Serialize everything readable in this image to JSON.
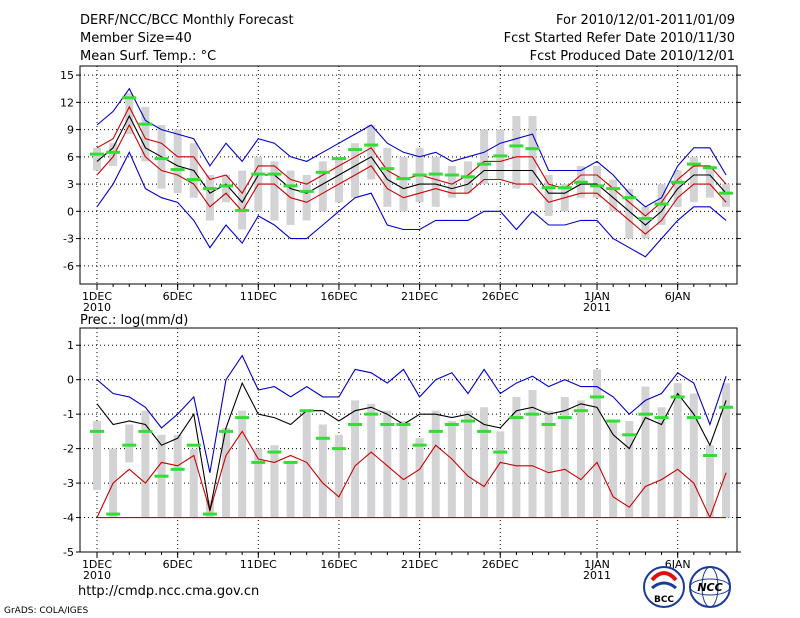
{
  "header": {
    "title": "DERF/NCC/BCC Monthly Forecast",
    "member_size": "Member Size=40",
    "variable": "Mean Surf. Temp.: °C",
    "period": "For 2010/12/01-2011/01/09",
    "started": "Fcst Started Refer Date 2010/11/30",
    "produced": "Fcst Produced Date 2010/12/01"
  },
  "footer": {
    "url": "http://cmdp.ncc.cma.gov.cn",
    "grads": "GrADS: COLA/IGES",
    "logo_left_text": "BCC",
    "logo_right_text": "NCC"
  },
  "colors": {
    "box": "#d3d3d6",
    "max_line": "#0000cc",
    "mean_line": "#000000",
    "min_line": "#cc0000",
    "ensemble_mark": "#33dd33",
    "grid": "#000000"
  },
  "chart_data": [
    {
      "id": "temp",
      "type": "line",
      "title": "Mean Surf. Temp.: °C",
      "ylim": [
        -8,
        16
      ],
      "yticks": [
        "15",
        "12",
        "9",
        "6",
        "3",
        "0",
        "-3",
        "-6"
      ],
      "ytick_values": [
        15,
        12,
        9,
        6,
        3,
        0,
        -3,
        -6
      ],
      "xticks": [
        {
          "day": 1,
          "label": "1DEC",
          "sub": "2010"
        },
        {
          "day": 6,
          "label": "6DEC",
          "sub": ""
        },
        {
          "day": 11,
          "label": "11DEC",
          "sub": ""
        },
        {
          "day": 16,
          "label": "16DEC",
          "sub": ""
        },
        {
          "day": 21,
          "label": "21DEC",
          "sub": ""
        },
        {
          "day": 26,
          "label": "26DEC",
          "sub": ""
        },
        {
          "day": 32,
          "label": "1JAN",
          "sub": "2011"
        },
        {
          "day": 37,
          "label": "6JAN",
          "sub": ""
        }
      ],
      "days": [
        1,
        2,
        3,
        4,
        5,
        6,
        7,
        8,
        9,
        10,
        11,
        12,
        13,
        14,
        15,
        16,
        17,
        18,
        19,
        20,
        21,
        22,
        23,
        24,
        25,
        26,
        27,
        28,
        29,
        30,
        31,
        32,
        33,
        34,
        35,
        36,
        37,
        38,
        39,
        40
      ],
      "box_low": [
        4.5,
        5,
        8.5,
        5.5,
        2.5,
        2,
        1.5,
        -1,
        1,
        -2,
        0,
        -1,
        -1.5,
        -1,
        0,
        1,
        1.5,
        3.5,
        0.5,
        0,
        1,
        0.5,
        1.5,
        2,
        3,
        3.5,
        2.5,
        3,
        -0.5,
        0,
        1.5,
        1.5,
        0,
        -3,
        -3,
        -1.5,
        0.5,
        1,
        1.5,
        0.5
      ],
      "box_high": [
        7,
        7.5,
        13,
        11.5,
        9.5,
        9,
        7.5,
        4,
        4,
        4.5,
        6,
        5.5,
        4.5,
        4,
        5.5,
        6,
        7.5,
        9.5,
        7,
        6,
        7,
        6,
        5,
        5.5,
        9,
        9,
        10.5,
        10.5,
        4,
        3,
        5,
        5,
        3.5,
        2.5,
        0.5,
        3,
        4.5,
        6,
        5,
        3
      ],
      "max_line": [
        9.5,
        11,
        13.5,
        10,
        9,
        8.5,
        8,
        5,
        7.5,
        5.5,
        8,
        7.5,
        6,
        5.5,
        6.5,
        7.5,
        8.5,
        9.5,
        7.5,
        6.5,
        6,
        6.5,
        5.5,
        6,
        6.5,
        7.5,
        8,
        8.5,
        4.5,
        4.5,
        4.5,
        5.5,
        4,
        2,
        0.5,
        1.5,
        5,
        7,
        7,
        4
      ],
      "mean_line": [
        5.5,
        7,
        10.5,
        7,
        6,
        5,
        4.5,
        2,
        3,
        1,
        4,
        4,
        2.5,
        2,
        3,
        4,
        5,
        6,
        3.5,
        2.5,
        3,
        3,
        2.5,
        3,
        4.5,
        4.5,
        4.5,
        4.5,
        2,
        2,
        3,
        3,
        1.5,
        0,
        -1.5,
        0,
        2.5,
        4,
        4,
        2
      ],
      "min_line": [
        4,
        6,
        9.5,
        6,
        4.5,
        4,
        3,
        0.5,
        2,
        0,
        3,
        3,
        1.5,
        1,
        2,
        3,
        4,
        5,
        2.5,
        1.5,
        2,
        2.5,
        2,
        2,
        3.5,
        3.5,
        3,
        3,
        1,
        1.5,
        2,
        2,
        0.5,
        -1,
        -2.5,
        -1,
        1.5,
        3,
        3,
        1
      ],
      "abs_min_line": [
        0.5,
        3,
        6.5,
        2.5,
        1.5,
        1,
        -1,
        -4,
        -1.5,
        -3.5,
        -0.5,
        -1.5,
        -3,
        -3,
        -1.5,
        0,
        1.5,
        2,
        -1.5,
        -2,
        -2,
        -1,
        -1,
        -1,
        0,
        0,
        -2,
        0,
        -1.5,
        -1.5,
        -1,
        -1,
        -3,
        -4,
        -5,
        -3,
        -1,
        0.5,
        0.5,
        -1
      ],
      "ensemble_mark": [
        6.3,
        6.5,
        12.5,
        9.6,
        5.8,
        4.6,
        3.5,
        2.5,
        2.8,
        0.1,
        4.1,
        4.1,
        2.8,
        2.2,
        4.3,
        5.8,
        6.8,
        7.3,
        4.7,
        3.6,
        4.0,
        4.1,
        4.0,
        3.8,
        5.2,
        6.1,
        7.2,
        6.9,
        2.6,
        2.6,
        3.2,
        2.8,
        2.5,
        1.5,
        -0.8,
        0.8,
        3.2,
        5.2,
        4.8,
        2.0
      ]
    },
    {
      "id": "prec",
      "type": "line",
      "title": "Prec.: log(mm/d)",
      "ylim": [
        -5,
        1.5
      ],
      "yticks": [
        "1",
        "0",
        "-1",
        "-2",
        "-3",
        "-4",
        "-5"
      ],
      "ytick_values": [
        1,
        0,
        -1,
        -2,
        -3,
        -4,
        -5
      ],
      "xticks": [
        {
          "day": 1,
          "label": "1DEC",
          "sub": "2010"
        },
        {
          "day": 6,
          "label": "6DEC",
          "sub": ""
        },
        {
          "day": 11,
          "label": "11DEC",
          "sub": ""
        },
        {
          "day": 16,
          "label": "16DEC",
          "sub": ""
        },
        {
          "day": 21,
          "label": "21DEC",
          "sub": ""
        },
        {
          "day": 26,
          "label": "26DEC",
          "sub": ""
        },
        {
          "day": 32,
          "label": "1JAN",
          "sub": "2011"
        },
        {
          "day": 37,
          "label": "6JAN",
          "sub": ""
        }
      ],
      "days": [
        1,
        2,
        3,
        4,
        5,
        6,
        7,
        8,
        9,
        10,
        11,
        12,
        13,
        14,
        15,
        16,
        17,
        18,
        19,
        20,
        21,
        22,
        23,
        24,
        25,
        26,
        27,
        28,
        29,
        30,
        31,
        32,
        33,
        34,
        35,
        36,
        37,
        38,
        39,
        40
      ],
      "box_low": [
        -3.2,
        -4,
        -2.4,
        -4,
        -4,
        -4,
        -4,
        -4,
        -4,
        -4,
        -4,
        -4,
        -4,
        -4,
        -4,
        -4,
        -4,
        -4,
        -4,
        -4,
        -4,
        -4,
        -4,
        -4,
        -4,
        -4,
        -4,
        -4,
        -4,
        -4,
        -4,
        -4,
        -4,
        -4,
        -4,
        -4,
        -4,
        -4,
        -4,
        -4
      ],
      "box_high": [
        -1.2,
        -2,
        -1.3,
        -0.9,
        -1.6,
        -1.6,
        -2,
        -3.5,
        -1.4,
        -0.9,
        -2,
        -1.9,
        -2.4,
        -0.9,
        -1.3,
        -1.6,
        -0.6,
        -0.7,
        -0.9,
        -1.2,
        -1.7,
        -0.9,
        -1.2,
        -0.9,
        -0.8,
        -1.5,
        -0.5,
        -0.3,
        -0.9,
        -0.5,
        -0.6,
        0.3,
        -1.2,
        -1.2,
        -0.2,
        -0.8,
        -0.1,
        -0.4,
        -1.9,
        -0.1
      ],
      "max_line": [
        0,
        -0.4,
        -0.5,
        -0.8,
        -1.4,
        -1,
        -0.5,
        -2.7,
        0,
        0.7,
        -0.3,
        -0.2,
        -0.5,
        -0.2,
        -0.5,
        -0.5,
        0.3,
        0.2,
        -0.1,
        0.3,
        -0.5,
        0,
        0.2,
        -0.4,
        0.3,
        -0.4,
        -0.1,
        0.1,
        -0.2,
        0,
        -0.2,
        -0.2,
        -0.5,
        -1,
        -0.6,
        -0.4,
        0.2,
        -0.1,
        -1.3,
        0.1
      ],
      "mean_line": [
        -0.7,
        -1.3,
        -1.2,
        -1.3,
        -1.9,
        -1.7,
        -1,
        -3.8,
        -1.4,
        -0.1,
        -1,
        -1.1,
        -1.3,
        -0.9,
        -0.9,
        -1.2,
        -0.9,
        -0.8,
        -1,
        -1.3,
        -1,
        -1,
        -1.1,
        -1,
        -1.3,
        -1.4,
        -0.9,
        -0.8,
        -1,
        -0.9,
        -0.7,
        -0.8,
        -1.6,
        -2,
        -1.1,
        -1.3,
        -0.4,
        -1,
        -1.9,
        -0.6
      ],
      "min_line": [
        -4,
        -3,
        -2.6,
        -3,
        -2.4,
        -2.5,
        -2.2,
        -3.8,
        -2.2,
        -1.5,
        -2.3,
        -2.4,
        -2.2,
        -2.4,
        -3,
        -3.4,
        -2.5,
        -2.1,
        -2.5,
        -2.9,
        -2.6,
        -1.9,
        -2.3,
        -2.8,
        -3.1,
        -2.4,
        -2.5,
        -2.5,
        -2.7,
        -2.6,
        -2.9,
        -2.4,
        -3.4,
        -3.7,
        -3.1,
        -2.9,
        -2.6,
        -3,
        -4,
        -2.7
      ],
      "floor_line": -4,
      "ensemble_mark": [
        -1.5,
        -3.9,
        -1.9,
        -1.5,
        -2.8,
        -2.6,
        -1.9,
        -3.9,
        -1.5,
        -1.1,
        -2.4,
        -2.1,
        -2.4,
        -0.9,
        -1.7,
        -2.0,
        -1.3,
        -1.0,
        -1.3,
        -1.3,
        -1.9,
        -1.5,
        -1.3,
        -1.2,
        -1.5,
        -2.1,
        -1.1,
        -1.0,
        -1.3,
        -1.1,
        -0.9,
        -0.5,
        -1.2,
        -1.6,
        -1.0,
        -1.1,
        -0.5,
        -1.1,
        -2.2,
        -0.8
      ]
    }
  ]
}
